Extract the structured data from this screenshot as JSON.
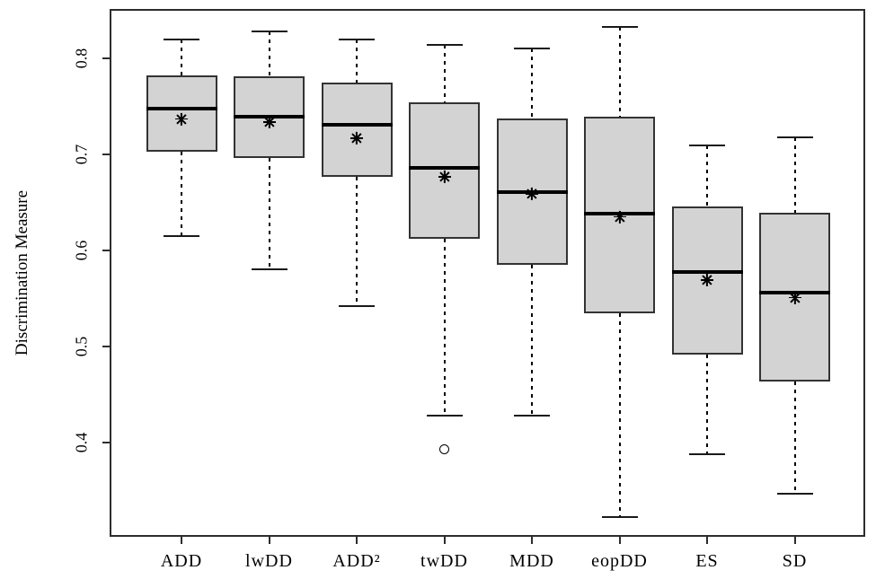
{
  "chart_data": {
    "type": "boxplot",
    "title": "",
    "xlabel": "",
    "ylabel": "Discrimination Measure",
    "ylim": [
      0.31,
      0.85
    ],
    "yticks": [
      0.4,
      0.5,
      0.6,
      0.7,
      0.8
    ],
    "grid": false,
    "legend": "none",
    "categories": [
      "ADD",
      "lwDD",
      "ADD²",
      "twDD",
      "MDD",
      "eopDD",
      "ES",
      "SD"
    ],
    "series": [
      {
        "label": "ADD",
        "whisker_low": 0.615,
        "q1": 0.703,
        "median": 0.748,
        "mean": 0.737,
        "q3": 0.782,
        "whisker_high": 0.82,
        "outliers": []
      },
      {
        "label": "lwDD",
        "whisker_low": 0.58,
        "q1": 0.696,
        "median": 0.739,
        "mean": 0.734,
        "q3": 0.781,
        "whisker_high": 0.828,
        "outliers": []
      },
      {
        "label": "ADD²",
        "whisker_low": 0.542,
        "q1": 0.677,
        "median": 0.731,
        "mean": 0.717,
        "q3": 0.775,
        "whisker_high": 0.82,
        "outliers": []
      },
      {
        "label": "twDD",
        "whisker_low": 0.428,
        "q1": 0.612,
        "median": 0.686,
        "mean": 0.677,
        "q3": 0.754,
        "whisker_high": 0.814,
        "outliers": [
          0.393
        ]
      },
      {
        "label": "MDD",
        "whisker_low": 0.428,
        "q1": 0.585,
        "median": 0.661,
        "mean": 0.659,
        "q3": 0.737,
        "whisker_high": 0.81,
        "outliers": []
      },
      {
        "label": "eopDD",
        "whisker_low": 0.322,
        "q1": 0.535,
        "median": 0.638,
        "mean": 0.635,
        "q3": 0.739,
        "whisker_high": 0.833,
        "outliers": []
      },
      {
        "label": "ES",
        "whisker_low": 0.388,
        "q1": 0.492,
        "median": 0.578,
        "mean": 0.569,
        "q3": 0.646,
        "whisker_high": 0.709,
        "outliers": []
      },
      {
        "label": "SD",
        "whisker_low": 0.347,
        "q1": 0.464,
        "median": 0.556,
        "mean": 0.551,
        "q3": 0.639,
        "whisker_high": 0.718,
        "outliers": []
      }
    ],
    "markers": {
      "mean_marker": "asterisk-star",
      "outlier_marker": "open-circle"
    },
    "colors": {
      "box_fill": "#d3d3d3",
      "box_border": "#333333",
      "median": "#000000",
      "whisker": "#000000",
      "frame": "#2d2d2d",
      "background": "#ffffff"
    }
  }
}
